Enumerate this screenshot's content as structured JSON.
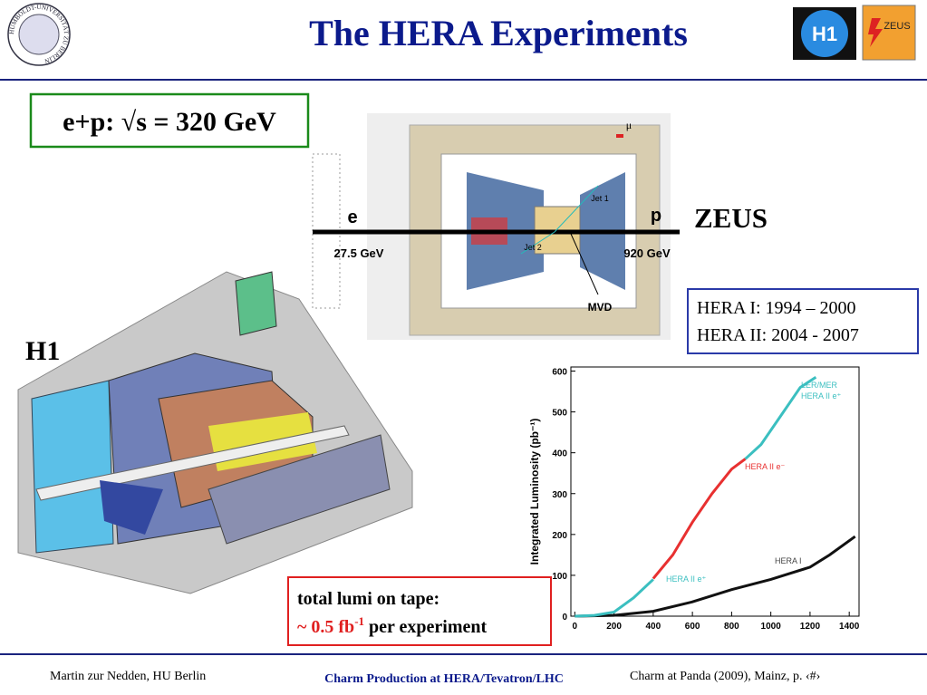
{
  "header": {
    "title": "The HERA Experiments",
    "seal_text": "HUMBOLDT-UNIVERSITÄT ZU BERLIN",
    "logo_h1": "H1",
    "logo_zeus": "ZEUS"
  },
  "energy_box": "e+p: √s = 320 GeV",
  "zeus": {
    "label": "ZEUS",
    "beam_e": "e",
    "beam_e_energy": "27.5 GeV",
    "beam_p": "p",
    "beam_p_energy": "920 GeV",
    "mvd": "MVD",
    "jet1": "Jet 1",
    "jet2": "Jet 2",
    "muon": "μ"
  },
  "periods": [
    "HERA I: 1994 – 2000",
    "HERA II: 2004 - 2007"
  ],
  "h1_label": "H1",
  "chart_data": {
    "type": "line",
    "y_label": "Integrated Luminosity (pb⁻¹)",
    "xlim": [
      -20,
      1450
    ],
    "ylim": [
      0,
      610
    ],
    "xticks": [
      0,
      200,
      400,
      600,
      800,
      1000,
      1200,
      1400
    ],
    "yticks": [
      0,
      100,
      200,
      300,
      400,
      500,
      600
    ],
    "series": [
      {
        "name": "HERA I",
        "color": "#111111",
        "x": [
          0,
          200,
          400,
          600,
          800,
          1000,
          1200,
          1300,
          1430
        ],
        "values": [
          0,
          2,
          12,
          35,
          65,
          90,
          120,
          150,
          195
        ]
      },
      {
        "name": "HERA II e⁺",
        "color": "#3bbfc0",
        "x": [
          0,
          100,
          200,
          300,
          400
        ],
        "values": [
          0,
          2,
          10,
          45,
          90
        ]
      },
      {
        "name": "HERA II e⁻",
        "color": "#e83030",
        "x": [
          400,
          500,
          600,
          700,
          800,
          870
        ],
        "values": [
          92,
          150,
          230,
          300,
          360,
          385
        ]
      },
      {
        "name": "HERA II e⁺",
        "color": "#3bbfc0",
        "x": [
          870,
          950,
          1050,
          1150,
          1230
        ],
        "values": [
          385,
          420,
          490,
          560,
          585
        ]
      }
    ],
    "annotation": "LER/MER"
  },
  "lumi_box": {
    "line1": "total lumi on tape:",
    "amount": "~ 0.5 fb",
    "exponent": "-1",
    "rest": " per experiment"
  },
  "footer": {
    "author": "Martin zur Nedden, HU Berlin",
    "talk": "Charm Production at HERA/Tevatron/LHC",
    "event": "Charm at Panda (2009), Mainz, p. ‹#›"
  }
}
